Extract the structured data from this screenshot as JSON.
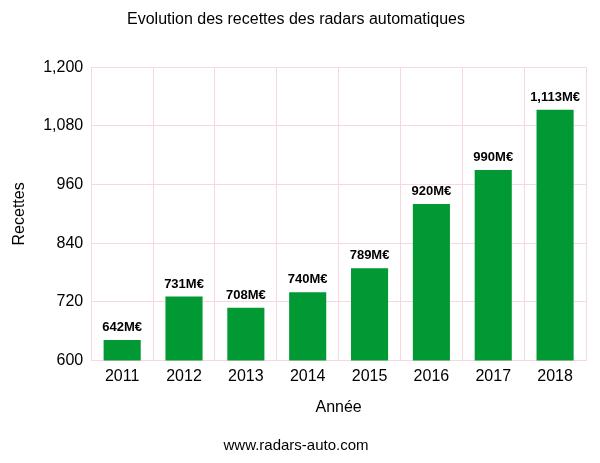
{
  "chart_data": {
    "type": "bar",
    "title": "Evolution des recettes des radars automatiques",
    "x_label": "Année",
    "y_label": "Recettes",
    "source": "www.radars-auto.com",
    "categories": [
      "2011",
      "2012",
      "2013",
      "2014",
      "2015",
      "2016",
      "2017",
      "2018"
    ],
    "values": [
      642,
      731,
      708,
      740,
      789,
      920,
      990,
      1113
    ],
    "value_labels": [
      "642M€",
      "731M€",
      "708M€",
      "740M€",
      "789M€",
      "920M€",
      "990M€",
      "1,113M€"
    ],
    "data_labels": true,
    "color": "#009933",
    "ylim": [
      600,
      1200
    ],
    "yticks": [
      600,
      720,
      840,
      960,
      {
        "value": 1080,
        "label": "1,080"
      },
      {
        "value": 1200,
        "label": "1,200"
      }
    ],
    "grid": true
  }
}
